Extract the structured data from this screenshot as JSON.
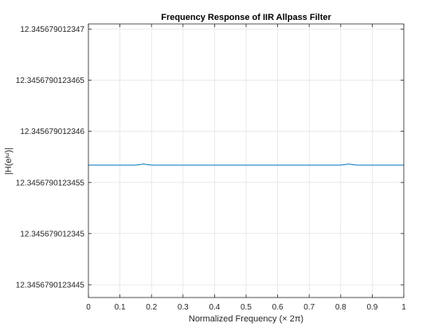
{
  "chart_data": {
    "type": "line",
    "title": "Frequency Response of IIR Allpass Filter",
    "xlabel": "Normalized Frequency (× 2π)",
    "ylabel": "|H(e^{jω})|",
    "xlim": [
      0,
      1
    ],
    "ylim": [
      12.345679012344375,
      12.34567901234705
    ],
    "x_ticks": [
      0,
      0.1,
      0.2,
      0.3,
      0.4,
      0.5,
      0.6,
      0.7,
      0.8,
      0.9,
      1
    ],
    "x_tick_labels": [
      "0",
      "0.1",
      "0.2",
      "0.3",
      "0.4",
      "0.5",
      "0.6",
      "0.7",
      "0.8",
      "0.9",
      "1"
    ],
    "y_ticks": [
      12.345679012347,
      12.3456790123465,
      12.345679012346,
      12.3456790123455,
      12.345679012345,
      12.3456790123445
    ],
    "y_tick_labels": [
      "12.345679012347",
      "12.3456790123465",
      "12.345679012346",
      "12.3456790123455",
      "12.345679012345",
      "12.3456790123445"
    ],
    "grid": true,
    "color": "#0072bd",
    "series": [
      {
        "x": [
          0,
          0.05,
          0.1,
          0.15,
          0.165,
          0.175,
          0.185,
          0.2,
          0.3,
          0.4,
          0.5,
          0.6,
          0.7,
          0.8,
          0.815,
          0.825,
          0.835,
          0.85,
          0.9,
          0.95,
          1
        ],
        "values": [
          12.34567901234567,
          12.34567901234567,
          12.34567901234567,
          12.34567901234567,
          12.345679012345675,
          12.34567901234568,
          12.345679012345675,
          12.34567901234567,
          12.34567901234567,
          12.34567901234567,
          12.34567901234567,
          12.34567901234567,
          12.34567901234567,
          12.34567901234567,
          12.345679012345675,
          12.34567901234568,
          12.345679012345675,
          12.34567901234567,
          12.34567901234567,
          12.34567901234567,
          12.34567901234567
        ]
      }
    ]
  }
}
